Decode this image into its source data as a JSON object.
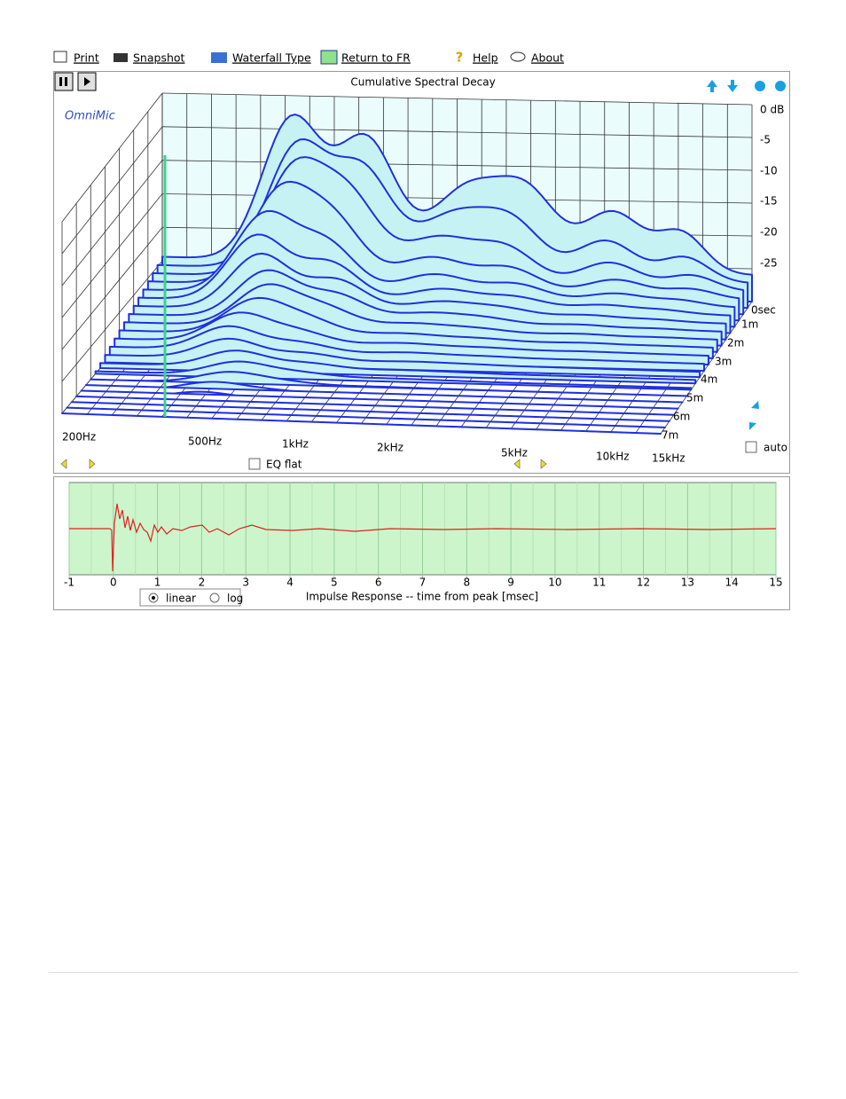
{
  "toolbar": [
    "Print",
    "Snapshot",
    "Waterfall Type",
    "Return to FR",
    "Help",
    "About"
  ],
  "waterfall": {
    "title": "Cumulative Spectral Decay",
    "brand": "OmniMic",
    "db_labels": [
      "0 dB",
      "-5",
      "-10",
      "-15",
      "-20",
      "-25"
    ],
    "time_labels": [
      "0sec",
      "1m",
      "2m",
      "3m",
      "4m",
      "5m",
      "6m",
      "7m"
    ],
    "freq_labels": [
      "200Hz",
      "500Hz",
      "1kHz",
      "2kHz",
      "5kHz",
      "10kHz",
      "15kHz"
    ],
    "eq_flat": "EQ flat",
    "auto": "auto"
  },
  "impulse": {
    "ticks": [
      -1,
      0,
      1,
      2,
      3,
      4,
      5,
      6,
      7,
      8,
      9,
      10,
      11,
      12,
      13,
      14,
      15
    ],
    "caption": "Impulse Response  -- time from peak [msec]",
    "linear": "linear",
    "log": "log"
  }
}
